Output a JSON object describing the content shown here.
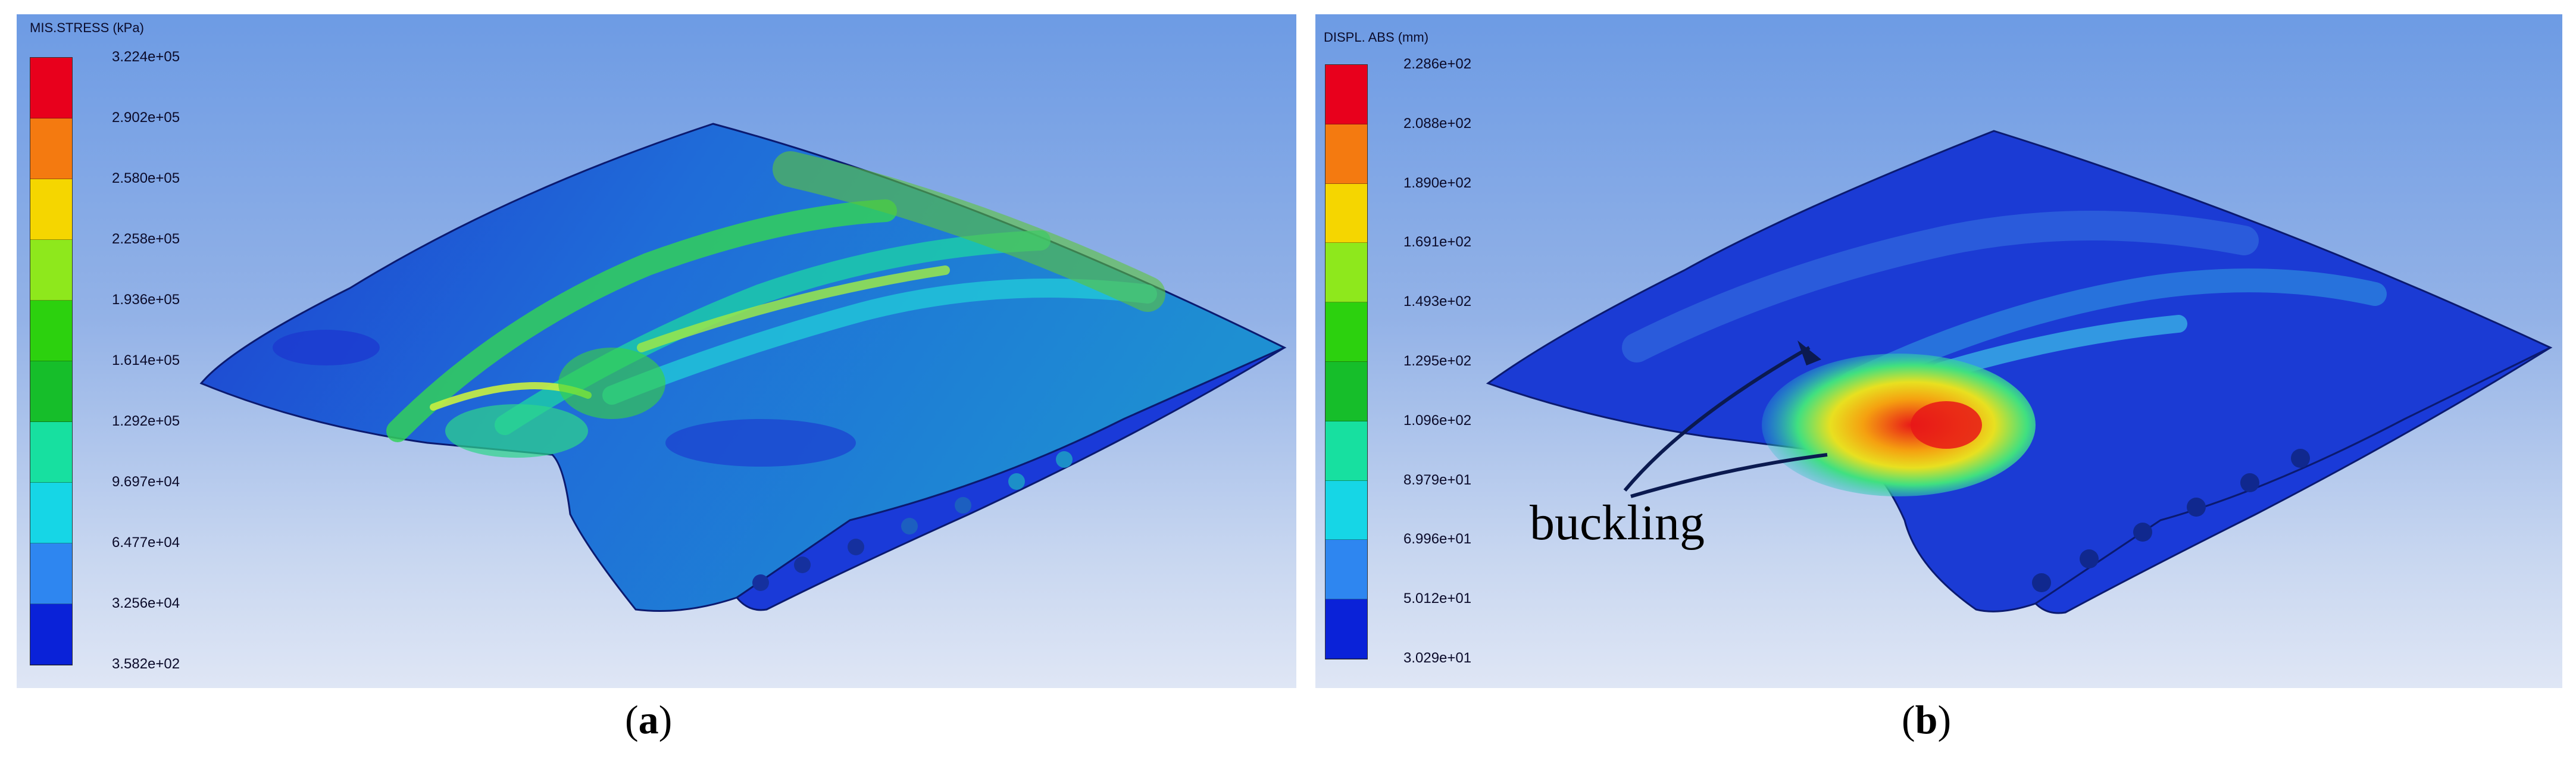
{
  "panels": [
    {
      "id": "a",
      "colorbar_title": "MIS.STRESS (kPa)",
      "colorbar_values": [
        "3.224e+05",
        "2.902e+05",
        "2.580e+05",
        "2.258e+05",
        "1.936e+05",
        "1.614e+05",
        "1.292e+05",
        "9.697e+04",
        "6.477e+04",
        "3.256e+04",
        "3.582e+02"
      ],
      "label_letter": "a"
    },
    {
      "id": "b",
      "colorbar_title": "DISPL. ABS (mm)",
      "colorbar_values": [
        "2.286e+02",
        "2.088e+02",
        "1.890e+02",
        "1.691e+02",
        "1.493e+02",
        "1.295e+02",
        "1.096e+02",
        "8.979e+01",
        "6.996e+01",
        "5.012e+01",
        "3.029e+01"
      ],
      "label_letter": "b",
      "annotation": "buckling"
    }
  ],
  "colorbar_colors": [
    "#e8001c",
    "#f47a10",
    "#f5d600",
    "#8ee81c",
    "#2cd10e",
    "#16be2a",
    "#17e0a0",
    "#16d6e6",
    "#2e86f0",
    "#0a22d8"
  ]
}
